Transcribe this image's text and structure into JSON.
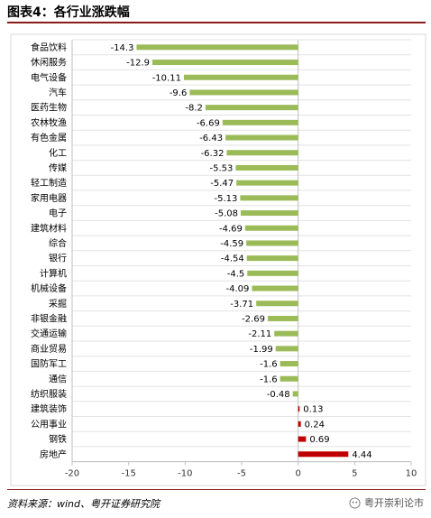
{
  "header": {
    "title": "图表4：各行业涨跌幅"
  },
  "footer": {
    "source": "资料来源：wind、粤开证券研究院",
    "watermark": "粤开崇利论市"
  },
  "colors": {
    "negative": "#9bbb59",
    "positive": "#c00000",
    "rule": "#8b1a1a"
  },
  "chart_data": {
    "type": "bar",
    "orientation": "horizontal",
    "title": "",
    "xlabel": "",
    "ylabel": "",
    "xlim": [
      -20,
      10
    ],
    "xticks": [
      -20,
      -15,
      -10,
      -5,
      0,
      5,
      10
    ],
    "grid": true,
    "categories": [
      "食品饮料",
      "休闲服务",
      "电气设备",
      "汽车",
      "医药生物",
      "农林牧渔",
      "有色金属",
      "化工",
      "传媒",
      "轻工制造",
      "家用电器",
      "电子",
      "建筑材料",
      "综合",
      "银行",
      "计算机",
      "机械设备",
      "采掘",
      "非银金融",
      "交通运输",
      "商业贸易",
      "国防军工",
      "通信",
      "纺织服装",
      "建筑装饰",
      "公用事业",
      "钢铁",
      "房地产"
    ],
    "values": [
      -14.3,
      -12.9,
      -10.11,
      -9.6,
      -8.2,
      -6.69,
      -6.43,
      -6.32,
      -5.53,
      -5.47,
      -5.13,
      -5.08,
      -4.69,
      -4.59,
      -4.54,
      -4.5,
      -4.09,
      -3.71,
      -2.69,
      -2.11,
      -1.99,
      -1.6,
      -1.6,
      -0.48,
      0.13,
      0.24,
      0.69,
      4.44
    ],
    "value_labels": [
      "-14.3",
      "-12.9",
      "-10.11",
      "-9.6",
      "-8.2",
      "-6.69",
      "-6.43",
      "-6.32",
      "-5.53",
      "-5.47",
      "-5.13",
      "-5.08",
      "-4.69",
      "-4.59",
      "-4.54",
      "-4.5",
      "-4.09",
      "-3.71",
      "-2.69",
      "-2.11",
      "-1.99",
      "-1.6",
      "-1.6",
      "-0.48",
      "0.13",
      "0.24",
      "0.69",
      "4.44"
    ]
  }
}
